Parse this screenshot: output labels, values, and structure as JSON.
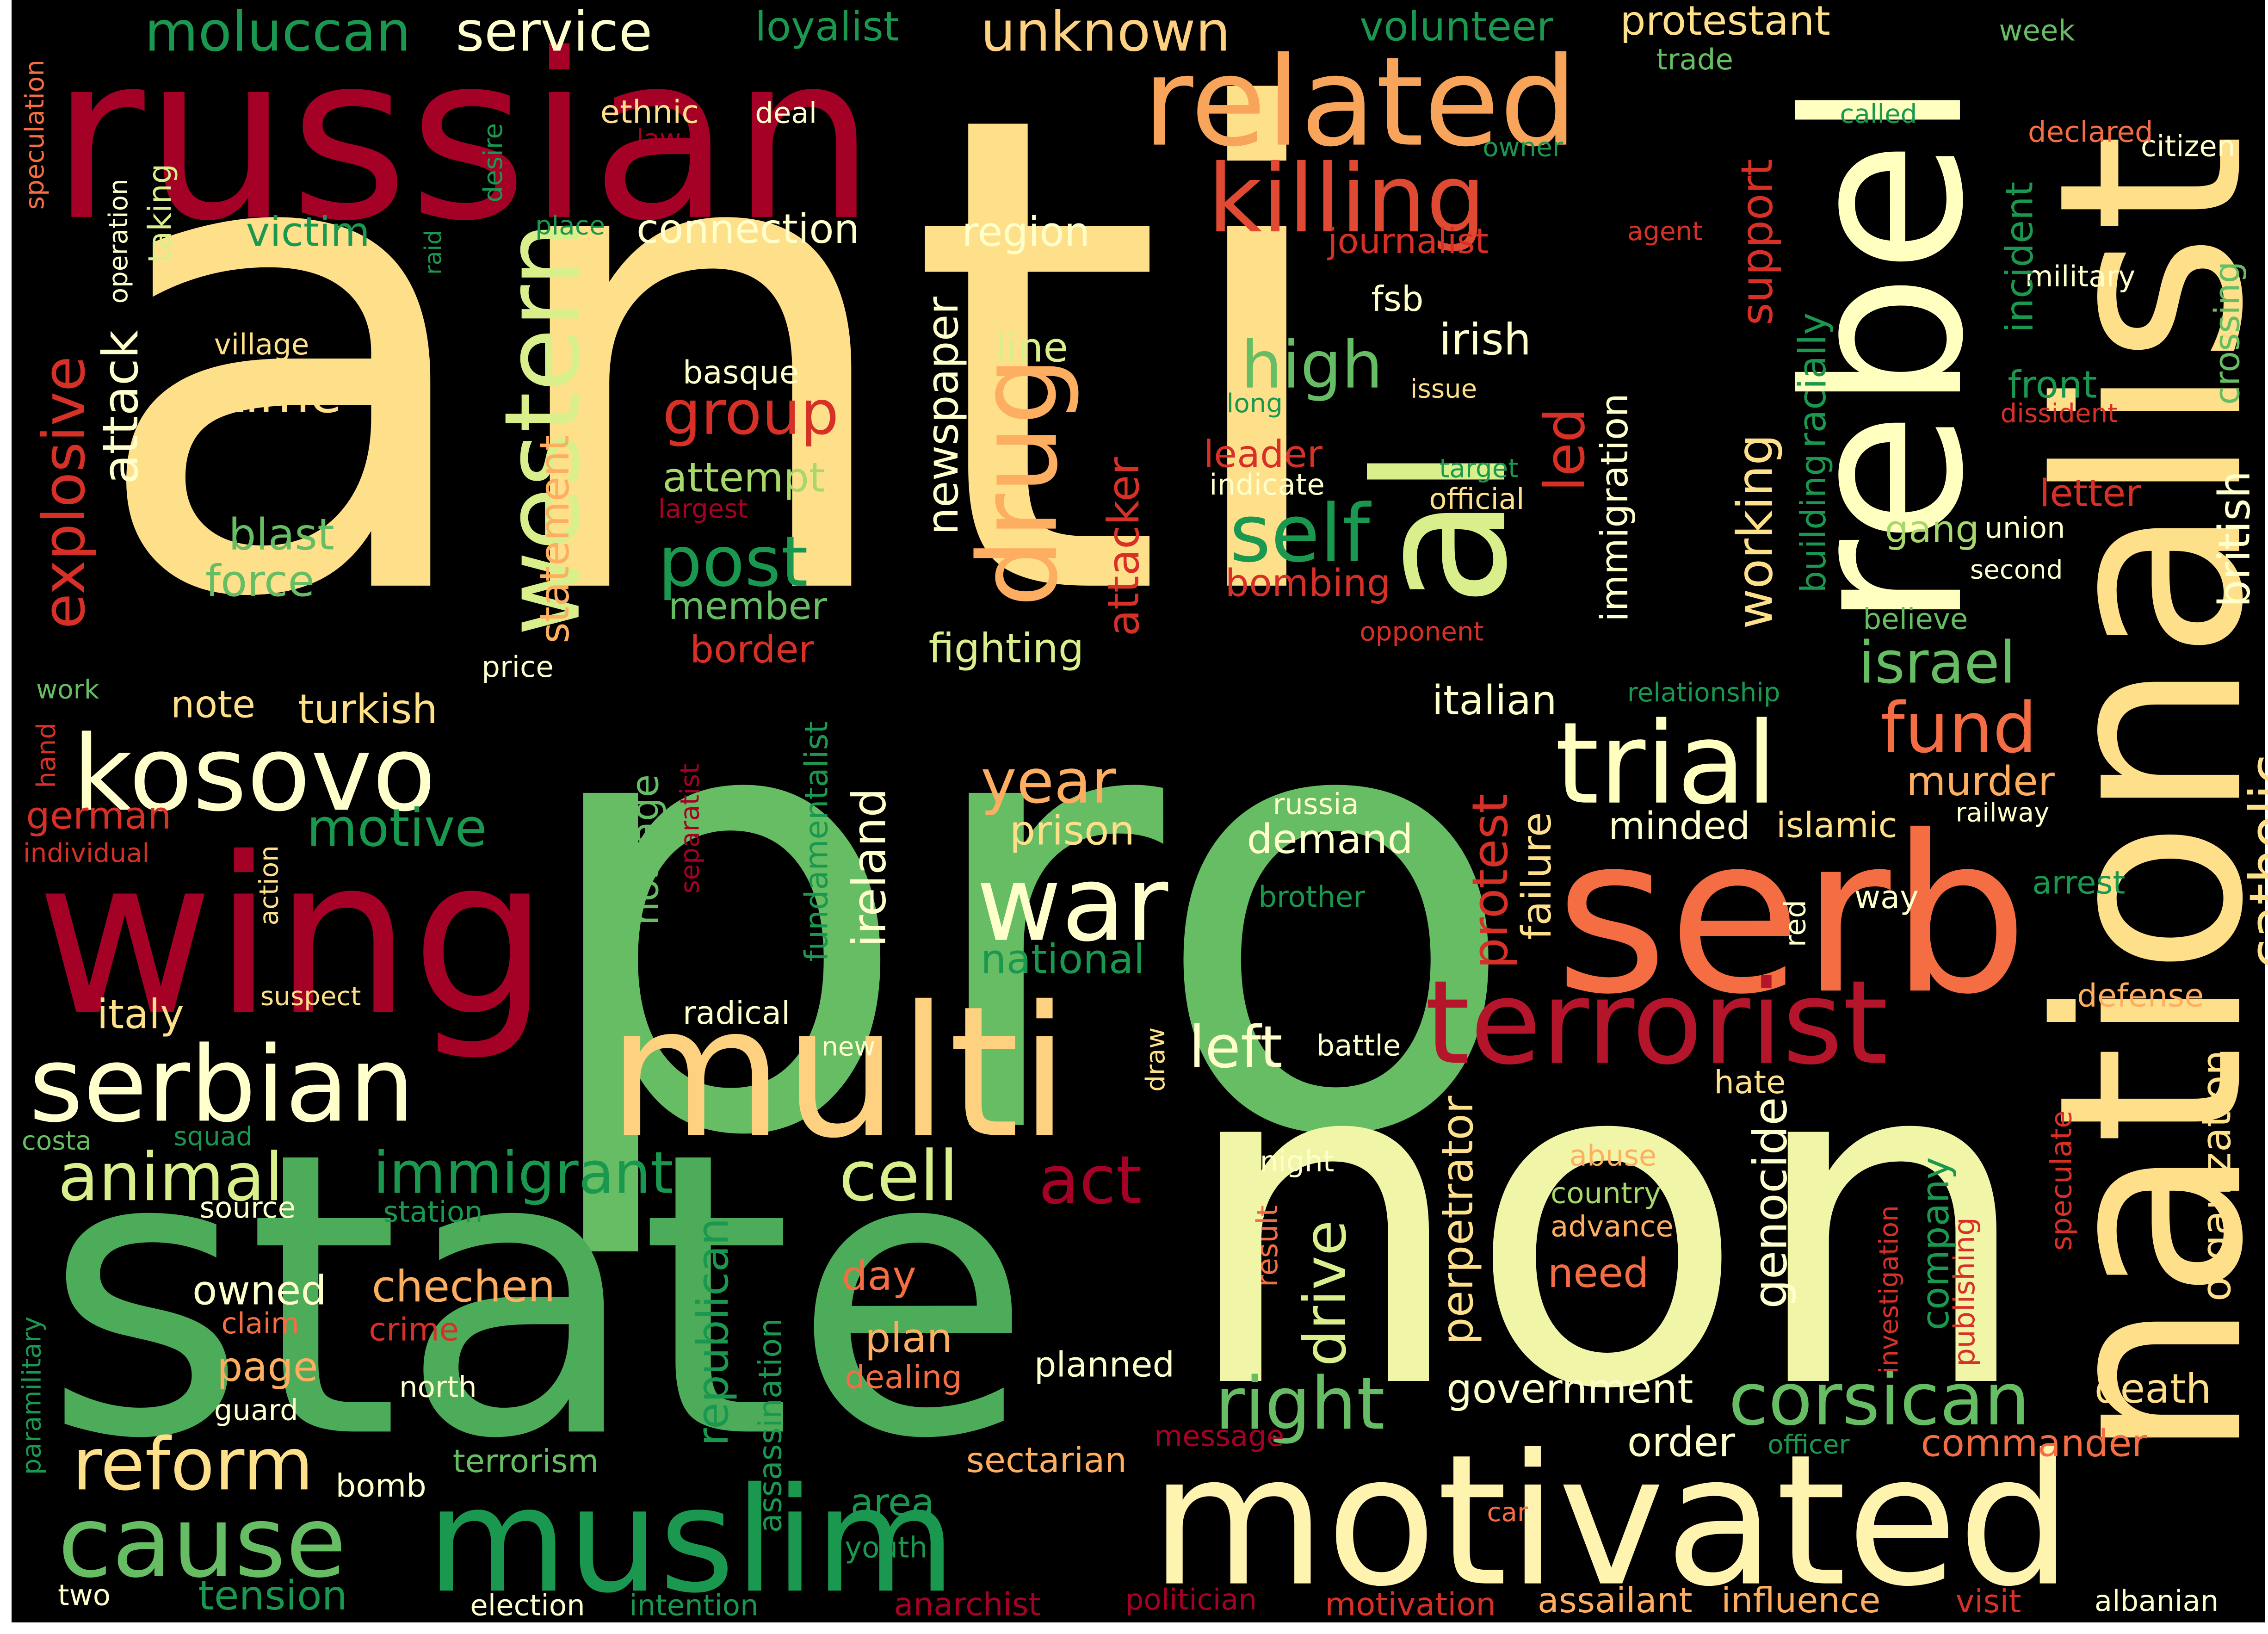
{
  "canvas": {
    "background": "#000000",
    "frame": "#ffffff"
  },
  "palette": {
    "dark_red": "#a50026",
    "red": "#d73027",
    "orange_red": "#f46d43",
    "orange": "#fdae61",
    "light_orange": "#fee08b",
    "cream": "#ffffbf",
    "pale_green": "#d9ef8b",
    "light_green": "#a6d96a",
    "green": "#66bd63",
    "mid_green": "#1a9850",
    "dark_green": "#006837"
  },
  "words": [
    {
      "text": "anti",
      "color": "#fee08b"
    },
    {
      "text": "pro",
      "color": "#66bd63"
    },
    {
      "text": "state",
      "color": "#4dac59"
    },
    {
      "text": "non",
      "color": "#f0f5a8"
    },
    {
      "text": "russian",
      "color": "#a50026"
    },
    {
      "text": "nationalist",
      "color": "#fee08b"
    },
    {
      "text": "wing",
      "color": "#a50026"
    },
    {
      "text": "serb",
      "color": "#f46d43"
    },
    {
      "text": "multi",
      "color": "#fdd17f"
    },
    {
      "text": "motivated",
      "color": "#fff3b0"
    },
    {
      "text": "muslim",
      "color": "#1a9850"
    },
    {
      "text": "rebel",
      "color": "#ffffbf"
    },
    {
      "text": "al",
      "color": "#d9ef8b"
    },
    {
      "text": "related",
      "color": "#f8a45b"
    },
    {
      "text": "terrorist",
      "color": "#b5152b"
    },
    {
      "text": "trial",
      "color": "#ffffbf"
    },
    {
      "text": "killing",
      "color": "#e04a33"
    },
    {
      "text": "serbian",
      "color": "#ffffcc"
    },
    {
      "text": "kosovo",
      "color": "#ffffcc"
    },
    {
      "text": "war",
      "color": "#ffffcc"
    },
    {
      "text": "cause",
      "color": "#66bd63"
    },
    {
      "text": "western",
      "color": "#d9ef8b"
    },
    {
      "text": "drug",
      "color": "#fdae61"
    },
    {
      "text": "reform",
      "color": "#fee08b"
    },
    {
      "text": "right",
      "color": "#66bd63"
    },
    {
      "text": "corsican",
      "color": "#66bd63"
    },
    {
      "text": "immigrant",
      "color": "#1a9850"
    },
    {
      "text": "animal",
      "color": "#d9ef8b"
    },
    {
      "text": "cell",
      "color": "#d9ef8b"
    },
    {
      "text": "act",
      "color": "#a50026"
    },
    {
      "text": "fund",
      "color": "#f46d43"
    },
    {
      "text": "year",
      "color": "#fdae61"
    },
    {
      "text": "self",
      "color": "#1a9850"
    },
    {
      "text": "post",
      "color": "#1a9850"
    },
    {
      "text": "high",
      "color": "#66bd63"
    },
    {
      "text": "group",
      "color": "#d73027"
    },
    {
      "text": "israel",
      "color": "#66bd63"
    },
    {
      "text": "left",
      "color": "#ffffcc"
    },
    {
      "text": "explosive",
      "color": "#d73027"
    },
    {
      "text": "catholic",
      "color": "#fee08b"
    },
    {
      "text": "moluccan",
      "color": "#1a9850"
    },
    {
      "text": "service",
      "color": "#ffffcc"
    },
    {
      "text": "unknown",
      "color": "#fdd17f"
    },
    {
      "text": "loyalist",
      "color": "#1a9850"
    },
    {
      "text": "volunteer",
      "color": "#1a9850"
    },
    {
      "text": "protestant",
      "color": "#fee08b"
    },
    {
      "text": "trade",
      "color": "#66bd63"
    },
    {
      "text": "week",
      "color": "#66bd63"
    },
    {
      "text": "citizen",
      "color": "#ffffcc"
    },
    {
      "text": "declared",
      "color": "#f46d43"
    },
    {
      "text": "called",
      "color": "#1a9850"
    },
    {
      "text": "owner",
      "color": "#1a9850"
    },
    {
      "text": "ethnic",
      "color": "#fee08b"
    },
    {
      "text": "law",
      "color": "#a50026"
    },
    {
      "text": "deal",
      "color": "#ffffcc"
    },
    {
      "text": "victim",
      "color": "#1a9850"
    },
    {
      "text": "connection",
      "color": "#ffffcc"
    },
    {
      "text": "region",
      "color": "#ffffcc"
    },
    {
      "text": "place",
      "color": "#1a9850"
    },
    {
      "text": "journalist",
      "color": "#d73027"
    },
    {
      "text": "agent",
      "color": "#d73027"
    },
    {
      "text": "military",
      "color": "#ffffcc"
    },
    {
      "text": "incident",
      "color": "#1a9850"
    },
    {
      "text": "crossing",
      "color": "#66bd63"
    },
    {
      "text": "fsb",
      "color": "#ffffcc"
    },
    {
      "text": "irish",
      "color": "#ffffcc"
    },
    {
      "text": "village",
      "color": "#fee08b"
    },
    {
      "text": "basque",
      "color": "#ffffcc"
    },
    {
      "text": "line",
      "color": "#d9ef8b"
    },
    {
      "text": "time",
      "color": "#fee08b"
    },
    {
      "text": "attack",
      "color": "#ffffcc"
    },
    {
      "text": "taking",
      "color": "#d9ef8b"
    },
    {
      "text": "newspaper",
      "color": "#ffffcc"
    },
    {
      "text": "long",
      "color": "#1a9850"
    },
    {
      "text": "issue",
      "color": "#fee08b"
    },
    {
      "text": "led",
      "color": "#d73027"
    },
    {
      "text": "immigration",
      "color": "#ffffcc"
    },
    {
      "text": "support",
      "color": "#d73027"
    },
    {
      "text": "racially",
      "color": "#1a9850"
    },
    {
      "text": "working",
      "color": "#fee08b"
    },
    {
      "text": "building",
      "color": "#1a9850"
    },
    {
      "text": "front",
      "color": "#1a9850"
    },
    {
      "text": "dissident",
      "color": "#d73027"
    },
    {
      "text": "leader",
      "color": "#d73027"
    },
    {
      "text": "indicate",
      "color": "#ffffcc"
    },
    {
      "text": "target",
      "color": "#1a9850"
    },
    {
      "text": "official",
      "color": "#fee08b"
    },
    {
      "text": "letter",
      "color": "#d73027"
    },
    {
      "text": "gang",
      "color": "#a6d96a"
    },
    {
      "text": "union",
      "color": "#ffffcc"
    },
    {
      "text": "second",
      "color": "#ffffcc"
    },
    {
      "text": "british",
      "color": "#ffffcc"
    },
    {
      "text": "attempt",
      "color": "#a6d96a"
    },
    {
      "text": "largest",
      "color": "#a50026"
    },
    {
      "text": "blast",
      "color": "#66bd63"
    },
    {
      "text": "force",
      "color": "#66bd63"
    },
    {
      "text": "member",
      "color": "#66bd63"
    },
    {
      "text": "border",
      "color": "#d73027"
    },
    {
      "text": "fighting",
      "color": "#d9ef8b"
    },
    {
      "text": "statement",
      "color": "#fdae61"
    },
    {
      "text": "attacker",
      "color": "#d73027"
    },
    {
      "text": "bombing",
      "color": "#d73027"
    },
    {
      "text": "opponent",
      "color": "#d73027"
    },
    {
      "text": "believe",
      "color": "#66bd63"
    },
    {
      "text": "price",
      "color": "#ffffcc"
    },
    {
      "text": "operation",
      "color": "#ffffcc"
    },
    {
      "text": "raid",
      "color": "#1a9850"
    },
    {
      "text": "desire",
      "color": "#1a9850"
    },
    {
      "text": "speculation",
      "color": "#f46d43"
    },
    {
      "text": "work",
      "color": "#66bd63"
    },
    {
      "text": "hand",
      "color": "#d73027"
    },
    {
      "text": "note",
      "color": "#fee08b"
    },
    {
      "text": "turkish",
      "color": "#fee08b"
    },
    {
      "text": "italian",
      "color": "#ffffcc"
    },
    {
      "text": "relationship",
      "color": "#1a9850"
    },
    {
      "text": "murder",
      "color": "#fdae61"
    },
    {
      "text": "islamic",
      "color": "#fee08b"
    },
    {
      "text": "railway",
      "color": "#ffffcc"
    },
    {
      "text": "minded",
      "color": "#ffffcc"
    },
    {
      "text": "german",
      "color": "#d73027"
    },
    {
      "text": "individual",
      "color": "#d73027"
    },
    {
      "text": "motive",
      "color": "#1a9850"
    },
    {
      "text": "action",
      "color": "#fee08b"
    },
    {
      "text": "separatist",
      "color": "#a50026"
    },
    {
      "text": "hostage",
      "color": "#66bd63"
    },
    {
      "text": "fundamentalist",
      "color": "#1a9850"
    },
    {
      "text": "ireland",
      "color": "#ffffcc"
    },
    {
      "text": "prison",
      "color": "#fee08b"
    },
    {
      "text": "russia",
      "color": "#ffffcc"
    },
    {
      "text": "demand",
      "color": "#ffffcc"
    },
    {
      "text": "brother",
      "color": "#1a9850"
    },
    {
      "text": "national",
      "color": "#1a9850"
    },
    {
      "text": "protest",
      "color": "#d73027"
    },
    {
      "text": "failure",
      "color": "#fee08b"
    },
    {
      "text": "arrest",
      "color": "#1a9850"
    },
    {
      "text": "way",
      "color": "#ffffcc"
    },
    {
      "text": "red",
      "color": "#ffffcc"
    },
    {
      "text": "italy",
      "color": "#fee08b"
    },
    {
      "text": "suspect",
      "color": "#fee08b"
    },
    {
      "text": "radical",
      "color": "#ffffcc"
    },
    {
      "text": "new",
      "color": "#ffffcc"
    },
    {
      "text": "battle",
      "color": "#ffffcc"
    },
    {
      "text": "draw",
      "color": "#fee08b"
    },
    {
      "text": "defense",
      "color": "#fdae61"
    },
    {
      "text": "hate",
      "color": "#fee08b"
    },
    {
      "text": "organization",
      "color": "#fee08b"
    },
    {
      "text": "costa",
      "color": "#66bd63"
    },
    {
      "text": "squad",
      "color": "#1a9850"
    },
    {
      "text": "source",
      "color": "#ffffcc"
    },
    {
      "text": "station",
      "color": "#1a9850"
    },
    {
      "text": "owned",
      "color": "#ffffcc"
    },
    {
      "text": "chechen",
      "color": "#fdae61"
    },
    {
      "text": "day",
      "color": "#f46d43"
    },
    {
      "text": "plan",
      "color": "#fdae61"
    },
    {
      "text": "claim",
      "color": "#f46d43"
    },
    {
      "text": "crime",
      "color": "#d73027"
    },
    {
      "text": "page",
      "color": "#fdae61"
    },
    {
      "text": "guard",
      "color": "#ffffcc"
    },
    {
      "text": "north",
      "color": "#ffffcc"
    },
    {
      "text": "paramilitary",
      "color": "#1a9850"
    },
    {
      "text": "republican",
      "color": "#1a9850"
    },
    {
      "text": "assassination",
      "color": "#1a9850"
    },
    {
      "text": "dealing",
      "color": "#f46d43"
    },
    {
      "text": "planned",
      "color": "#ffffcc"
    },
    {
      "text": "night",
      "color": "#ffffcc"
    },
    {
      "text": "drive",
      "color": "#d9ef8b"
    },
    {
      "text": "result",
      "color": "#f46d43"
    },
    {
      "text": "perpetrator",
      "color": "#fee08b"
    },
    {
      "text": "abuse",
      "color": "#fdae61"
    },
    {
      "text": "country",
      "color": "#a6d96a"
    },
    {
      "text": "advance",
      "color": "#fdae61"
    },
    {
      "text": "need",
      "color": "#f46d43"
    },
    {
      "text": "genocide",
      "color": "#ffffcc"
    },
    {
      "text": "investigation",
      "color": "#d73027"
    },
    {
      "text": "publishing",
      "color": "#d73027"
    },
    {
      "text": "company",
      "color": "#1a9850"
    },
    {
      "text": "speculate",
      "color": "#d73027"
    },
    {
      "text": "government",
      "color": "#ffffcc"
    },
    {
      "text": "death",
      "color": "#fee08b"
    },
    {
      "text": "order",
      "color": "#ffffcc"
    },
    {
      "text": "officer",
      "color": "#1a9850"
    },
    {
      "text": "commander",
      "color": "#f46d43"
    },
    {
      "text": "message",
      "color": "#a50026"
    },
    {
      "text": "sectarian",
      "color": "#fdae61"
    },
    {
      "text": "terrorism",
      "color": "#66bd63"
    },
    {
      "text": "bomb",
      "color": "#ffffcc"
    },
    {
      "text": "area",
      "color": "#1a9850"
    },
    {
      "text": "youth",
      "color": "#1a9850"
    },
    {
      "text": "car",
      "color": "#f46d43"
    },
    {
      "text": "tension",
      "color": "#1a9850"
    },
    {
      "text": "two",
      "color": "#ffffcc"
    },
    {
      "text": "election",
      "color": "#ffffcc"
    },
    {
      "text": "intention",
      "color": "#1a9850"
    },
    {
      "text": "anarchist",
      "color": "#a50026"
    },
    {
      "text": "politician",
      "color": "#a50026"
    },
    {
      "text": "motivation",
      "color": "#d73027"
    },
    {
      "text": "assailant",
      "color": "#fdae61"
    },
    {
      "text": "influence",
      "color": "#fdae61"
    },
    {
      "text": "visit",
      "color": "#d73027"
    },
    {
      "text": "albanian",
      "color": "#ffffcc"
    }
  ]
}
